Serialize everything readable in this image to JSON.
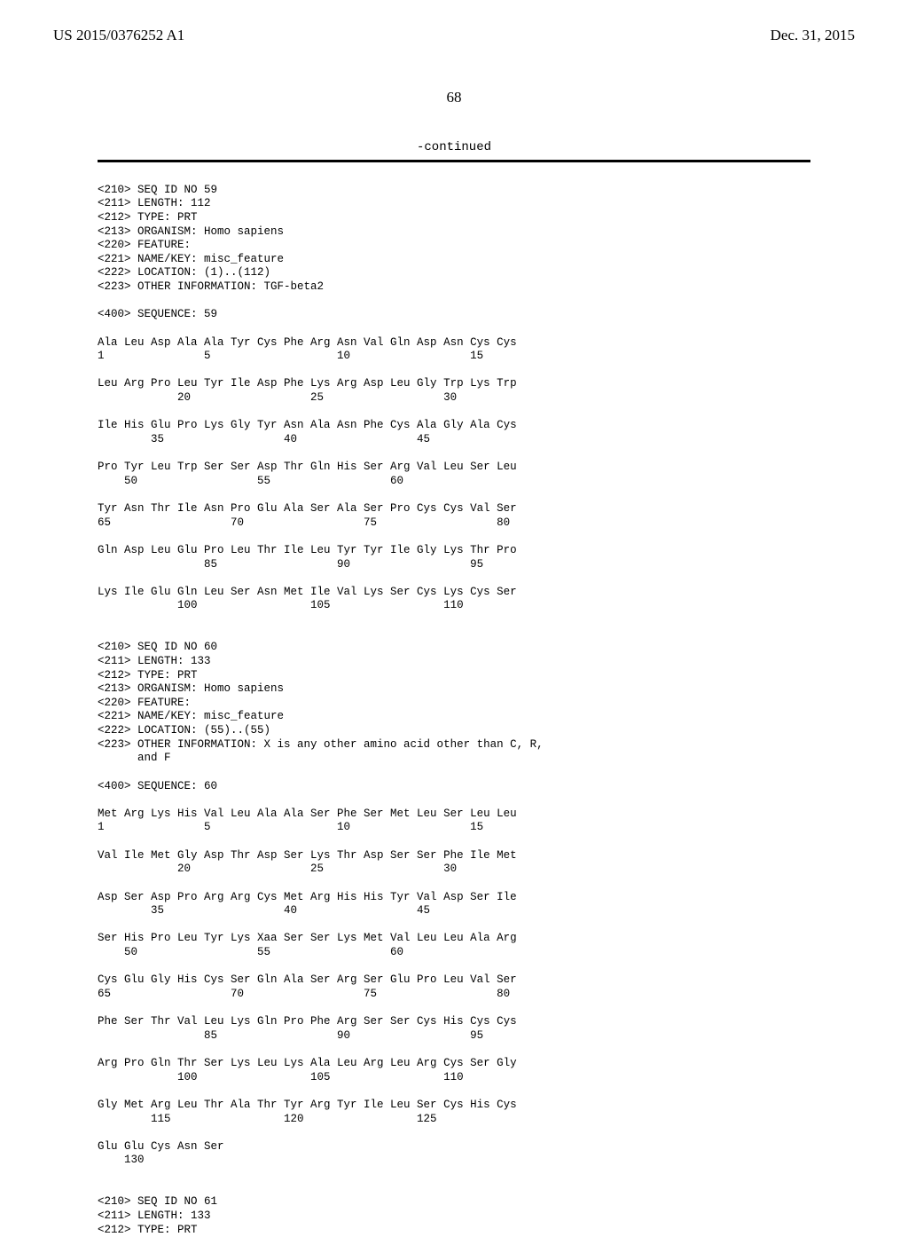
{
  "header": {
    "left": "US 2015/0376252 A1",
    "right": "Dec. 31, 2015"
  },
  "page_number": "68",
  "continued_label": "-continued",
  "seq": {
    "block59_meta": "<210> SEQ ID NO 59\n<211> LENGTH: 112\n<212> TYPE: PRT\n<213> ORGANISM: Homo sapiens\n<220> FEATURE:\n<221> NAME/KEY: misc_feature\n<222> LOCATION: (1)..(112)\n<223> OTHER INFORMATION: TGF-beta2\n\n<400> SEQUENCE: 59",
    "block59_body": "Ala Leu Asp Ala Ala Tyr Cys Phe Arg Asn Val Gln Asp Asn Cys Cys\n1               5                   10                  15\n\nLeu Arg Pro Leu Tyr Ile Asp Phe Lys Arg Asp Leu Gly Trp Lys Trp\n            20                  25                  30\n\nIle His Glu Pro Lys Gly Tyr Asn Ala Asn Phe Cys Ala Gly Ala Cys\n        35                  40                  45\n\nPro Tyr Leu Trp Ser Ser Asp Thr Gln His Ser Arg Val Leu Ser Leu\n    50                  55                  60\n\nTyr Asn Thr Ile Asn Pro Glu Ala Ser Ala Ser Pro Cys Cys Val Ser\n65                  70                  75                  80\n\nGln Asp Leu Glu Pro Leu Thr Ile Leu Tyr Tyr Ile Gly Lys Thr Pro\n                85                  90                  95\n\nLys Ile Glu Gln Leu Ser Asn Met Ile Val Lys Ser Cys Lys Cys Ser\n            100                 105                 110",
    "block60_meta": "<210> SEQ ID NO 60\n<211> LENGTH: 133\n<212> TYPE: PRT\n<213> ORGANISM: Homo sapiens\n<220> FEATURE:\n<221> NAME/KEY: misc_feature\n<222> LOCATION: (55)..(55)\n<223> OTHER INFORMATION: X is any other amino acid other than C, R,\n      and F\n\n<400> SEQUENCE: 60",
    "block60_body": "Met Arg Lys His Val Leu Ala Ala Ser Phe Ser Met Leu Ser Leu Leu\n1               5                   10                  15\n\nVal Ile Met Gly Asp Thr Asp Ser Lys Thr Asp Ser Ser Phe Ile Met\n            20                  25                  30\n\nAsp Ser Asp Pro Arg Arg Cys Met Arg His His Tyr Val Asp Ser Ile\n        35                  40                  45\n\nSer His Pro Leu Tyr Lys Xaa Ser Ser Lys Met Val Leu Leu Ala Arg\n    50                  55                  60\n\nCys Glu Gly His Cys Ser Gln Ala Ser Arg Ser Glu Pro Leu Val Ser\n65                  70                  75                  80\n\nPhe Ser Thr Val Leu Lys Gln Pro Phe Arg Ser Ser Cys His Cys Cys\n                85                  90                  95\n\nArg Pro Gln Thr Ser Lys Leu Lys Ala Leu Arg Leu Arg Cys Ser Gly\n            100                 105                 110\n\nGly Met Arg Leu Thr Ala Thr Tyr Arg Tyr Ile Leu Ser Cys His Cys\n        115                 120                 125\n\nGlu Glu Cys Asn Ser\n    130",
    "block61_meta": "<210> SEQ ID NO 61\n<211> LENGTH: 133\n<212> TYPE: PRT"
  }
}
